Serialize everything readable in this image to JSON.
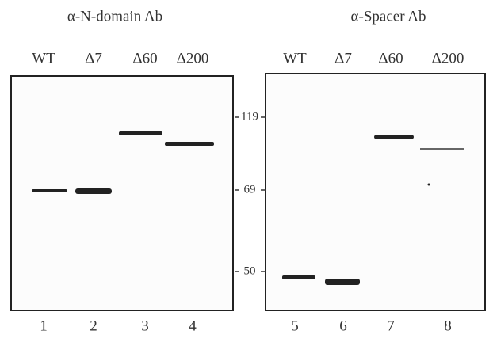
{
  "panels": [
    {
      "title": "α-N-domain Ab",
      "lanes": [
        "WT",
        "Δ7",
        "Δ60",
        "Δ200"
      ],
      "lane_numbers": [
        "1",
        "2",
        "3",
        "4"
      ]
    },
    {
      "title": "α-Spacer Ab",
      "lanes": [
        "WT",
        "Δ7",
        "Δ60",
        "Δ200"
      ],
      "lane_numbers": [
        "5",
        "6",
        "7",
        "8"
      ]
    }
  ],
  "markers": [
    "119",
    "69",
    "50"
  ]
}
